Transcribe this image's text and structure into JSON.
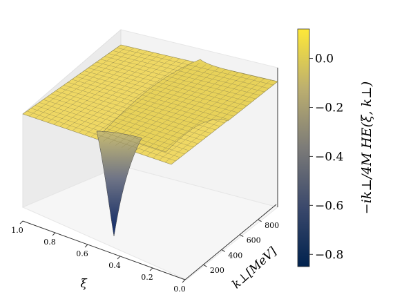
{
  "chart_data": {
    "type": "surface3d",
    "title": "",
    "xlabel": "ξ",
    "ylabel": "k⊥[MeV]",
    "zlabel": "−ik⊥/4M HE(ξ, k⊥)",
    "xlim": [
      0.0,
      1.0
    ],
    "ylim": [
      0,
      1000
    ],
    "zlim": [
      -0.85,
      0.1
    ],
    "x_ticks": [
      "0.0",
      "0.2",
      "0.4",
      "0.6",
      "0.8",
      "1.0"
    ],
    "y_ticks": [
      "200",
      "400",
      "600",
      "800"
    ],
    "colorbar": {
      "colormap": "cividis",
      "range": [
        -0.85,
        0.12
      ],
      "ticks": [
        "0.0",
        "−0.2",
        "−0.4",
        "−0.6",
        "−0.8"
      ],
      "tick_values": [
        0.0,
        -0.2,
        -0.4,
        -0.6,
        -0.8
      ]
    },
    "surface": {
      "plateau_value": 0.0,
      "ridge_max": 0.07,
      "min_value": -0.85,
      "min_location": {
        "xi": 0.45,
        "k_perp": 100
      }
    },
    "colors": {
      "surface_high": "#f2dd5c",
      "surface_low": "#0e2a6b",
      "pane": "#f2f2f2"
    }
  }
}
